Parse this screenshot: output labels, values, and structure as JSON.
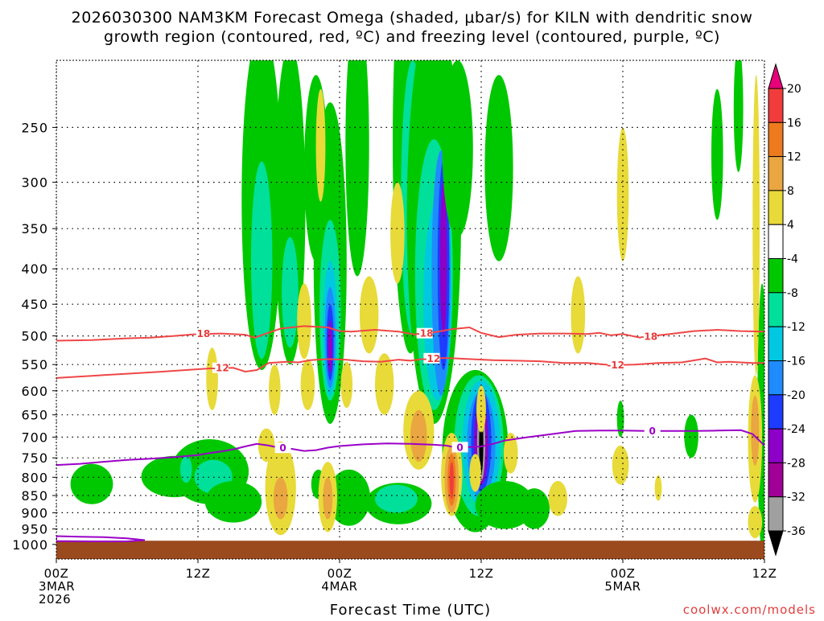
{
  "title": {
    "line1": "2026030300 NAM3KM Forecast Omega (shaded, μbar/s) for KILN with dendritic snow",
    "line2": "growth region (contoured, red, ºC) and freezing level (contoured, purple, ºC)"
  },
  "xlabel": "Forecast Time (UTC)",
  "credit": "coolwx.com/models",
  "chart_data": {
    "type": "heatmap",
    "title": "2026030300 NAM3KM Forecast Omega (shaded, μbar/s) for KILN with dendritic snow growth region (contoured, red, ºC) and freezing level (contoured, purple, ºC)",
    "xlabel": "Forecast Time (UTC)",
    "ylabel": "",
    "xlim": [
      0,
      60
    ],
    "ylim_hpa": [
      200,
      1050
    ],
    "y_ticks": [
      250,
      300,
      350,
      400,
      450,
      500,
      550,
      600,
      650,
      700,
      750,
      800,
      850,
      900,
      950,
      1000
    ],
    "x_ticks": [
      {
        "hour": 0,
        "lines": [
          "00Z",
          "3MAR",
          "2026"
        ]
      },
      {
        "hour": 12,
        "lines": [
          "12Z"
        ]
      },
      {
        "hour": 24,
        "lines": [
          "00Z",
          "4MAR"
        ]
      },
      {
        "hour": 36,
        "lines": [
          "12Z"
        ]
      },
      {
        "hour": 48,
        "lines": [
          "00Z",
          "5MAR"
        ]
      },
      {
        "hour": 60,
        "lines": [
          "12Z"
        ]
      }
    ],
    "colorbar": {
      "labels": [
        "20",
        "16",
        "12",
        "8",
        "4",
        "-4",
        "-8",
        "-12",
        "-16",
        "-20",
        "-24",
        "-28",
        "-32",
        "-36"
      ],
      "colors": [
        "#e8007a",
        "#f23c3c",
        "#ee7a1e",
        "#eaa640",
        "#e8da38",
        "#ffffff",
        "#00c800",
        "#00e09a",
        "#00c8e0",
        "#1e8cff",
        "#1e3cff",
        "#8c00c8",
        "#a00096",
        "#a0a0a0",
        "#000000"
      ]
    },
    "terrain_color": "#9b4a1e",
    "contours": [
      {
        "name": "dgz-top",
        "label": "-18",
        "color": "#f04646",
        "points": [
          [
            0,
            508
          ],
          [
            3,
            507
          ],
          [
            6,
            504
          ],
          [
            8,
            503
          ],
          [
            10,
            500
          ],
          [
            12,
            497
          ],
          [
            14,
            496
          ],
          [
            16,
            498
          ],
          [
            16.8,
            503
          ],
          [
            17.5,
            498
          ],
          [
            19,
            488
          ],
          [
            21,
            484
          ],
          [
            23,
            486
          ],
          [
            24,
            492
          ],
          [
            25,
            493
          ],
          [
            27,
            490
          ],
          [
            29,
            493
          ],
          [
            30.5,
            498
          ],
          [
            32,
            494
          ],
          [
            33.5,
            489
          ],
          [
            35,
            486
          ],
          [
            36,
            495
          ],
          [
            37.5,
            502
          ],
          [
            39,
            498
          ],
          [
            41,
            496
          ],
          [
            43,
            496
          ],
          [
            45,
            497
          ],
          [
            46,
            495
          ],
          [
            47,
            499
          ],
          [
            48,
            497
          ],
          [
            49.5,
            503
          ],
          [
            50.5,
            500
          ],
          [
            52,
            497
          ],
          [
            54,
            492
          ],
          [
            56,
            490
          ],
          [
            58,
            492
          ],
          [
            60,
            493
          ]
        ],
        "label_hours": [
          12.3,
          31.2,
          50.2
        ]
      },
      {
        "name": "dgz-bottom",
        "label": "-12",
        "color": "#f04646",
        "points": [
          [
            0,
            575
          ],
          [
            3,
            571
          ],
          [
            6,
            567
          ],
          [
            9,
            563
          ],
          [
            11,
            560
          ],
          [
            13,
            557
          ],
          [
            15,
            556
          ],
          [
            16,
            563
          ],
          [
            17,
            560
          ],
          [
            18,
            547
          ],
          [
            19.5,
            545
          ],
          [
            20.5,
            546
          ],
          [
            21.5,
            542
          ],
          [
            23,
            540
          ],
          [
            24.5,
            541
          ],
          [
            26,
            544
          ],
          [
            27.5,
            545
          ],
          [
            29,
            541
          ],
          [
            30,
            543
          ],
          [
            31,
            540
          ],
          [
            33,
            538
          ],
          [
            35,
            540
          ],
          [
            37,
            542
          ],
          [
            39,
            543
          ],
          [
            41,
            544
          ],
          [
            43,
            547
          ],
          [
            45,
            547
          ],
          [
            47,
            551
          ],
          [
            49,
            550
          ],
          [
            51,
            547
          ],
          [
            53,
            546
          ],
          [
            55,
            539
          ],
          [
            56,
            546
          ],
          [
            57,
            545
          ],
          [
            59,
            547
          ],
          [
            60,
            547
          ]
        ],
        "label_hours": [
          13.9,
          31.8,
          47.4
        ]
      },
      {
        "name": "freezing-level",
        "label": "0",
        "color": "#9b00c8",
        "points": [
          [
            0,
            768
          ],
          [
            2,
            765
          ],
          [
            4,
            760
          ],
          [
            6,
            755
          ],
          [
            8,
            752
          ],
          [
            10,
            748
          ],
          [
            12,
            743
          ],
          [
            13,
            738
          ],
          [
            14,
            734
          ],
          [
            15,
            729
          ],
          [
            16,
            722
          ],
          [
            17,
            716
          ],
          [
            18,
            720
          ],
          [
            19,
            726
          ],
          [
            20,
            728
          ],
          [
            21,
            733
          ],
          [
            22,
            731
          ],
          [
            23,
            725
          ],
          [
            24,
            721
          ],
          [
            26,
            717
          ],
          [
            28,
            715
          ],
          [
            30,
            716
          ],
          [
            32,
            718
          ],
          [
            33,
            720
          ],
          [
            34,
            725
          ],
          [
            36,
            722
          ],
          [
            37,
            716
          ],
          [
            38,
            708
          ],
          [
            40,
            700
          ],
          [
            42,
            693
          ],
          [
            44,
            686
          ],
          [
            46,
            685
          ],
          [
            48,
            685
          ],
          [
            50,
            686
          ],
          [
            52,
            686
          ],
          [
            54,
            686
          ],
          [
            56,
            685
          ],
          [
            58,
            684
          ],
          [
            59,
            693
          ],
          [
            60,
            720
          ]
        ],
        "label_hours": [
          19.2,
          34.2,
          50.5
        ]
      }
    ],
    "freezing_bands_low": [
      {
        "points": [
          [
            0,
            973
          ],
          [
            2,
            975
          ],
          [
            4,
            976
          ],
          [
            6,
            980
          ],
          [
            7.5,
            986
          ],
          [
            6,
            990
          ],
          [
            3,
            990
          ],
          [
            0,
            989
          ]
        ]
      }
    ],
    "omega_blobs": [
      {
        "h": 3,
        "p": 820,
        "rx": 1.8,
        "ry": 55,
        "v": -8
      },
      {
        "h": 10,
        "p": 800,
        "rx": 2.8,
        "ry": 55,
        "v": -8
      },
      {
        "h": 13,
        "p": 790,
        "rx": 3.3,
        "ry": 85,
        "v": -8
      },
      {
        "h": 13.3,
        "p": 800,
        "rx": 1.6,
        "ry": 45,
        "v": -12
      },
      {
        "h": 15,
        "p": 870,
        "rx": 2.4,
        "ry": 60,
        "v": -8
      },
      {
        "h": 17.4,
        "p": 370,
        "rx": 1.7,
        "ry": 190,
        "v": -8
      },
      {
        "h": 17.4,
        "p": 410,
        "rx": 0.9,
        "ry": 130,
        "v": -12
      },
      {
        "h": 19.8,
        "p": 370,
        "rx": 1.3,
        "ry": 180,
        "v": -8
      },
      {
        "h": 19.8,
        "p": 440,
        "rx": 0.7,
        "ry": 80,
        "v": -12
      },
      {
        "h": 22,
        "p": 300,
        "rx": 1.0,
        "ry": 90,
        "v": -8
      },
      {
        "h": 23.2,
        "p": 450,
        "rx": 1.4,
        "ry": 220,
        "v": -8
      },
      {
        "h": 23.2,
        "p": 480,
        "rx": 0.9,
        "ry": 140,
        "v": -12
      },
      {
        "h": 23.2,
        "p": 500,
        "rx": 0.6,
        "ry": 110,
        "v": -16
      },
      {
        "h": 23.2,
        "p": 510,
        "rx": 0.45,
        "ry": 85,
        "v": -20
      },
      {
        "h": 23.2,
        "p": 515,
        "rx": 0.3,
        "ry": 65,
        "v": -24
      },
      {
        "h": 23.2,
        "p": 520,
        "rx": 0.2,
        "ry": 45,
        "v": -28
      },
      {
        "h": 25.5,
        "p": 290,
        "rx": 1.0,
        "ry": 120,
        "v": -8
      },
      {
        "h": 24.8,
        "p": 860,
        "rx": 1.8,
        "ry": 80,
        "v": -8
      },
      {
        "h": 29,
        "p": 875,
        "rx": 2.8,
        "ry": 60,
        "v": -8
      },
      {
        "h": 28.8,
        "p": 860,
        "rx": 1.8,
        "ry": 40,
        "v": -12
      },
      {
        "h": 30,
        "p": 330,
        "rx": 1.5,
        "ry": 200,
        "v": -8
      },
      {
        "h": 30.2,
        "p": 350,
        "rx": 1.0,
        "ry": 150,
        "v": -12
      },
      {
        "h": 32,
        "p": 420,
        "rx": 2.3,
        "ry": 250,
        "v": -8
      },
      {
        "h": 32,
        "p": 450,
        "rx": 1.6,
        "ry": 190,
        "v": -12
      },
      {
        "h": 32.3,
        "p": 470,
        "rx": 1.2,
        "ry": 150,
        "v": -16
      },
      {
        "h": 32.6,
        "p": 440,
        "rx": 0.8,
        "ry": 170,
        "v": -20
      },
      {
        "h": 32.8,
        "p": 420,
        "rx": 0.5,
        "ry": 140,
        "v": -24
      },
      {
        "h": 32.8,
        "p": 400,
        "rx": 0.3,
        "ry": 100,
        "v": -28
      },
      {
        "h": 34,
        "p": 280,
        "rx": 1.3,
        "ry": 80,
        "v": -8
      },
      {
        "h": 35.5,
        "p": 760,
        "rx": 2.8,
        "ry": 200,
        "v": -8
      },
      {
        "h": 35.8,
        "p": 740,
        "rx": 2.1,
        "ry": 170,
        "v": -12
      },
      {
        "h": 36,
        "p": 730,
        "rx": 1.6,
        "ry": 150,
        "v": -16
      },
      {
        "h": 36,
        "p": 730,
        "rx": 1.2,
        "ry": 130,
        "v": -20
      },
      {
        "h": 36,
        "p": 720,
        "rx": 0.85,
        "ry": 120,
        "v": -24
      },
      {
        "h": 36,
        "p": 720,
        "rx": 0.6,
        "ry": 100,
        "v": -28
      },
      {
        "h": 36,
        "p": 720,
        "rx": 0.35,
        "ry": 90,
        "v": -32
      },
      {
        "h": 36,
        "p": 720,
        "rx": 0.18,
        "ry": 70,
        "v": -36
      },
      {
        "h": 38,
        "p": 880,
        "rx": 2.5,
        "ry": 70,
        "v": -8
      },
      {
        "h": 40.5,
        "p": 890,
        "rx": 1.3,
        "ry": 60,
        "v": -8
      },
      {
        "h": 37.5,
        "p": 300,
        "rx": 1.2,
        "ry": 90,
        "v": -8
      },
      {
        "h": 56,
        "p": 280,
        "rx": 0.5,
        "ry": 60,
        "v": -8
      },
      {
        "h": 57.8,
        "p": 240,
        "rx": 0.4,
        "ry": 50,
        "v": -8
      },
      {
        "h": 53.8,
        "p": 700,
        "rx": 0.6,
        "ry": 50,
        "v": -8
      },
      {
        "h": 59.8,
        "p": 720,
        "rx": 0.4,
        "ry": 300,
        "v": -8
      },
      {
        "h": 47.8,
        "p": 660,
        "rx": 0.3,
        "ry": 40,
        "v": -8
      },
      {
        "h": 22.2,
        "p": 820,
        "rx": 0.6,
        "ry": 40,
        "v": -8
      },
      {
        "h": 11,
        "p": 780,
        "rx": 0.5,
        "ry": 35,
        "v": -12
      }
    ],
    "omega_pos_blobs": [
      {
        "h": 13.2,
        "p": 580,
        "rx": 0.5,
        "ry": 60,
        "v": 4
      },
      {
        "h": 17.8,
        "p": 720,
        "rx": 0.7,
        "ry": 40,
        "v": 4
      },
      {
        "h": 18.5,
        "p": 600,
        "rx": 0.5,
        "ry": 50,
        "v": 4
      },
      {
        "h": 19,
        "p": 840,
        "rx": 1.3,
        "ry": 130,
        "v": 4
      },
      {
        "h": 19,
        "p": 860,
        "rx": 0.6,
        "ry": 60,
        "v": 8
      },
      {
        "h": 21,
        "p": 480,
        "rx": 0.6,
        "ry": 60,
        "v": 4
      },
      {
        "h": 21.3,
        "p": 590,
        "rx": 0.6,
        "ry": 50,
        "v": 4
      },
      {
        "h": 22.4,
        "p": 270,
        "rx": 0.4,
        "ry": 50,
        "v": 4
      },
      {
        "h": 23,
        "p": 860,
        "rx": 0.8,
        "ry": 100,
        "v": 4
      },
      {
        "h": 23,
        "p": 860,
        "rx": 0.4,
        "ry": 60,
        "v": 8
      },
      {
        "h": 24.6,
        "p": 590,
        "rx": 0.5,
        "ry": 45,
        "v": 4
      },
      {
        "h": 26.5,
        "p": 470,
        "rx": 0.8,
        "ry": 60,
        "v": 4
      },
      {
        "h": 27.8,
        "p": 590,
        "rx": 0.8,
        "ry": 60,
        "v": 4
      },
      {
        "h": 28.9,
        "p": 360,
        "rx": 0.6,
        "ry": 60,
        "v": 4
      },
      {
        "h": 30.7,
        "p": 690,
        "rx": 1.3,
        "ry": 90,
        "v": 4
      },
      {
        "h": 30.7,
        "p": 700,
        "rx": 0.7,
        "ry": 60,
        "v": 8
      },
      {
        "h": 33.5,
        "p": 800,
        "rx": 0.9,
        "ry": 110,
        "v": 4
      },
      {
        "h": 33.5,
        "p": 810,
        "rx": 0.6,
        "ry": 90,
        "v": 8
      },
      {
        "h": 33.5,
        "p": 810,
        "rx": 0.35,
        "ry": 70,
        "v": 12
      },
      {
        "h": 33.5,
        "p": 810,
        "rx": 0.18,
        "ry": 50,
        "v": 16
      },
      {
        "h": 35.5,
        "p": 790,
        "rx": 0.5,
        "ry": 50,
        "v": 4
      },
      {
        "h": 36,
        "p": 640,
        "rx": 0.4,
        "ry": 50,
        "v": 4
      },
      {
        "h": 38.5,
        "p": 740,
        "rx": 0.6,
        "ry": 50,
        "v": 4
      },
      {
        "h": 42.5,
        "p": 860,
        "rx": 0.8,
        "ry": 50,
        "v": 4
      },
      {
        "h": 44.2,
        "p": 470,
        "rx": 0.6,
        "ry": 60,
        "v": 4
      },
      {
        "h": 47.8,
        "p": 770,
        "rx": 0.7,
        "ry": 50,
        "v": 4
      },
      {
        "h": 51,
        "p": 830,
        "rx": 0.3,
        "ry": 35,
        "v": 4
      },
      {
        "h": 59.3,
        "p": 390,
        "rx": 0.3,
        "ry": 180,
        "v": 4
      },
      {
        "h": 59.2,
        "p": 720,
        "rx": 0.6,
        "ry": 150,
        "v": 4
      },
      {
        "h": 59.2,
        "p": 690,
        "rx": 0.35,
        "ry": 80,
        "v": 8
      },
      {
        "h": 59.2,
        "p": 930,
        "rx": 0.6,
        "ry": 50,
        "v": 4
      },
      {
        "h": 48,
        "p": 320,
        "rx": 0.5,
        "ry": 70,
        "v": 4
      }
    ],
    "contour_labels_positions": "along contour at given label_hours"
  }
}
